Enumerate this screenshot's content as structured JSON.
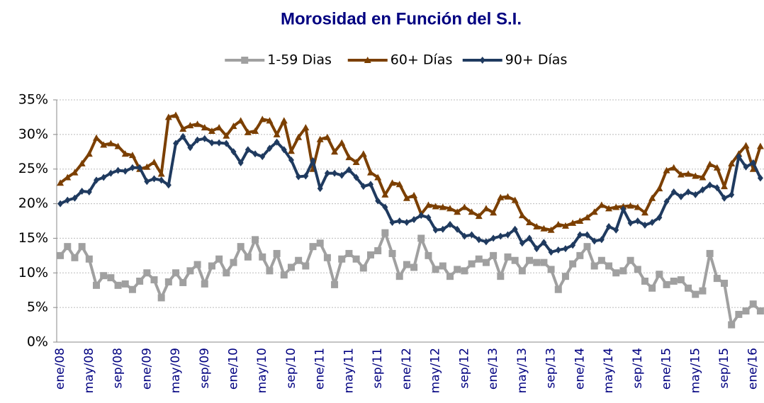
{
  "chart_data": {
    "type": "line",
    "title": "Morosidad en Función del S.I.",
    "categories": [
      "ene/08",
      null,
      null,
      null,
      "may/08",
      null,
      null,
      null,
      "sep/08",
      null,
      null,
      null,
      "ene/09",
      null,
      null,
      null,
      "may/09",
      null,
      null,
      null,
      "sep/09",
      null,
      null,
      null,
      "ene/10",
      null,
      null,
      null,
      "may/10",
      null,
      null,
      null,
      "sep/10",
      null,
      null,
      null,
      "ene/11",
      null,
      null,
      null,
      "may/11",
      null,
      null,
      null,
      "sep/11",
      null,
      null,
      null,
      "ene/12",
      null,
      null,
      null,
      "may/12",
      null,
      null,
      null,
      "sep/12",
      null,
      null,
      null,
      "ene/13",
      null,
      null,
      null,
      "may/13",
      null,
      null,
      null,
      "sep/13",
      null,
      null,
      null,
      "ene/14",
      null,
      null,
      null,
      "may/14",
      null,
      null,
      null,
      "sep/14",
      null,
      null,
      null,
      "ene/15",
      null,
      null,
      null,
      "may/15",
      null,
      null,
      null,
      "sep/15",
      null,
      null,
      null,
      "ene/16",
      null
    ],
    "series": [
      {
        "name": "1-59 Dias",
        "color": "#a0a0a0",
        "marker": "square",
        "values": [
          12.5,
          13.8,
          12.2,
          13.8,
          12,
          8.2,
          9.6,
          9.3,
          8.2,
          8.4,
          7.6,
          8.8,
          10,
          9,
          6.4,
          8.7,
          10,
          8.6,
          10.3,
          11.2,
          8.4,
          11,
          12,
          10,
          11.5,
          13.8,
          12.3,
          14.8,
          12.3,
          10.3,
          12.8,
          9.7,
          10.8,
          11.8,
          11,
          13.8,
          14.3,
          12.2,
          8.3,
          12,
          12.8,
          12,
          10.7,
          12.6,
          13.2,
          15.8,
          12.8,
          9.5,
          11.2,
          10.8,
          15,
          12.5,
          10.5,
          11,
          9.5,
          10.5,
          10.3,
          11.3,
          12,
          11.5,
          12.5,
          9.5,
          12.3,
          11.8,
          10.3,
          11.8,
          11.5,
          11.5,
          10.5,
          7.6,
          9.5,
          11.3,
          12.5,
          13.8,
          11,
          11.8,
          11,
          10,
          10.3,
          11.8,
          10.5,
          8.8,
          7.8,
          9.8,
          8.3,
          8.8,
          9,
          7.8,
          6.9,
          7.4,
          12.8,
          9.2,
          8.5,
          2.5,
          4,
          4.5,
          5.5,
          4.5
        ]
      },
      {
        "name": "60+ Días",
        "color": "#7b3f00",
        "marker": "triangle",
        "values": [
          23,
          23.8,
          24.5,
          25.8,
          27.2,
          29.5,
          28.5,
          28.7,
          28.3,
          27.2,
          27,
          25,
          25.3,
          26,
          24.3,
          32.5,
          32.8,
          30.8,
          31.3,
          31.5,
          31,
          30.5,
          31,
          29.8,
          31.2,
          32,
          30.3,
          30.5,
          32.2,
          32,
          30,
          32,
          27.6,
          29.6,
          31,
          25,
          29.3,
          29.6,
          27.5,
          28.8,
          26.7,
          26,
          27.2,
          24.5,
          23.8,
          21.3,
          23,
          22.8,
          20.8,
          21.2,
          18.5,
          19.8,
          19.6,
          19.5,
          19.3,
          18.8,
          19.5,
          18.8,
          18.2,
          19.3,
          18.7,
          20.9,
          21,
          20.5,
          18.3,
          17.3,
          16.7,
          16.4,
          16.2,
          17,
          16.8,
          17.2,
          17.5,
          18,
          18.8,
          19.8,
          19.3,
          19.5,
          19.6,
          19.7,
          19.5,
          18.7,
          20.8,
          22.2,
          24.8,
          25.2,
          24.2,
          24.3,
          24,
          23.8,
          25.7,
          25.2,
          22.5,
          25.8,
          27.2,
          28.4,
          25,
          28.3
        ]
      },
      {
        "name": "90+ Días",
        "color": "#1f3a5f",
        "marker": "diamond",
        "values": [
          20,
          20.5,
          20.8,
          21.8,
          21.7,
          23.4,
          23.8,
          24.4,
          24.8,
          24.7,
          25.2,
          25.2,
          23.2,
          23.6,
          23.4,
          22.7,
          28.7,
          29.7,
          28.1,
          29.2,
          29.4,
          28.8,
          28.8,
          28.7,
          27.5,
          25.9,
          27.8,
          27.2,
          26.8,
          28,
          28.9,
          27.8,
          26.3,
          23.9,
          24,
          26.2,
          22.2,
          24.4,
          24.4,
          24.1,
          24.9,
          23.8,
          22.5,
          22.8,
          20.4,
          19.5,
          17.3,
          17.5,
          17.3,
          17.7,
          18.3,
          18,
          16.2,
          16.3,
          17,
          16.3,
          15.3,
          15.5,
          14.8,
          14.5,
          15,
          15.3,
          15.5,
          16.3,
          14.3,
          15,
          13.5,
          14.4,
          13,
          13.3,
          13.5,
          14,
          15.5,
          15.5,
          14.6,
          14.8,
          16.7,
          16.2,
          19.2,
          17.2,
          17.5,
          16.9,
          17.3,
          18,
          20.3,
          21.7,
          21,
          21.7,
          21.3,
          22,
          22.7,
          22.3,
          20.8,
          21.3,
          26.8,
          25.3,
          25.9,
          23.7
        ]
      }
    ],
    "ylim": [
      0,
      35
    ],
    "yticks": [
      {
        "value": 0,
        "label": "0%"
      },
      {
        "value": 5,
        "label": "5%"
      },
      {
        "value": 10,
        "label": "10%"
      },
      {
        "value": 15,
        "label": "15%"
      },
      {
        "value": 20,
        "label": "20%"
      },
      {
        "value": 25,
        "label": "25%"
      },
      {
        "value": 30,
        "label": "30%"
      },
      {
        "value": 35,
        "label": "35%"
      }
    ],
    "grid": true,
    "legend": "top"
  }
}
